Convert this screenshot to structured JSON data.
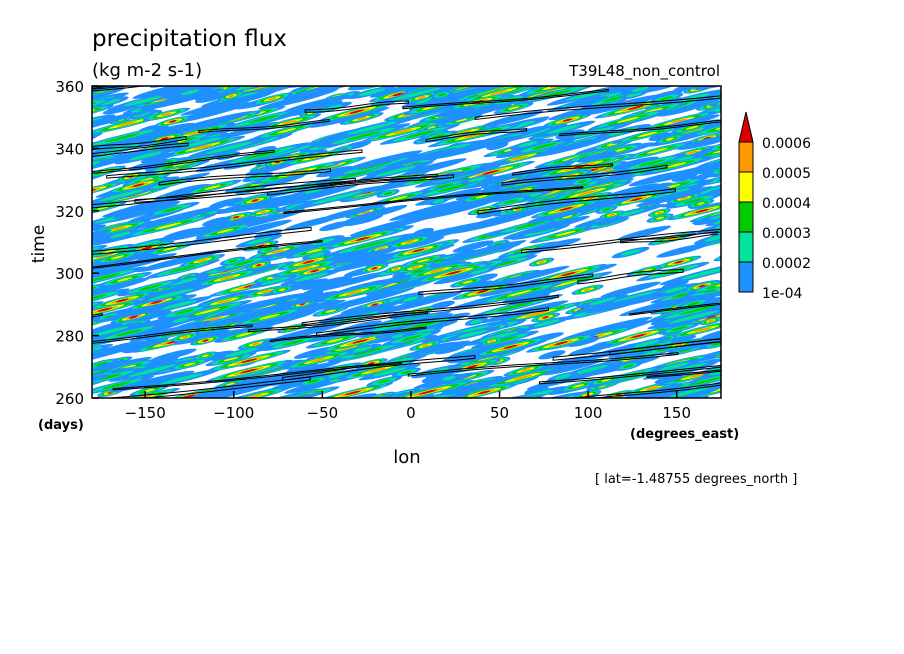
{
  "chart_data": {
    "type": "heatmap",
    "title": "precipitation flux",
    "subtitle": "(kg m-2 s-1)",
    "experiment_label": "T39L48_non_control",
    "xlabel": "lon",
    "xunits": "(degrees_east)",
    "ylabel": "time",
    "yunits": "(days)",
    "note": "[ lat=-1.48755 degrees_north ]",
    "xlim": [
      -180,
      175
    ],
    "ylim": [
      260,
      360
    ],
    "x_ticks": [
      -150,
      -100,
      -50,
      0,
      50,
      100,
      150
    ],
    "x_tick_labels": [
      "−150",
      "−100",
      "−50",
      "0",
      "50",
      "100",
      "150"
    ],
    "y_ticks": [
      260,
      280,
      300,
      320,
      340,
      360
    ],
    "y_tick_labels": [
      "260",
      "280",
      "300",
      "320",
      "340",
      "360"
    ],
    "grid": false,
    "legend_position": "right",
    "colorbar": {
      "levels": [
        0.0001,
        0.0002,
        0.0003,
        0.0004,
        0.0005,
        0.0006
      ],
      "labels": [
        "1e-04",
        "0.0002",
        "0.0003",
        "0.0004",
        "0.0005",
        "0.0006"
      ],
      "colors": [
        "#1e90ff",
        "#00e39a",
        "#00cc00",
        "#ffff00",
        "#ff9900",
        "#dd0000"
      ],
      "extend": "max"
    },
    "contour_color": "#000000"
  }
}
